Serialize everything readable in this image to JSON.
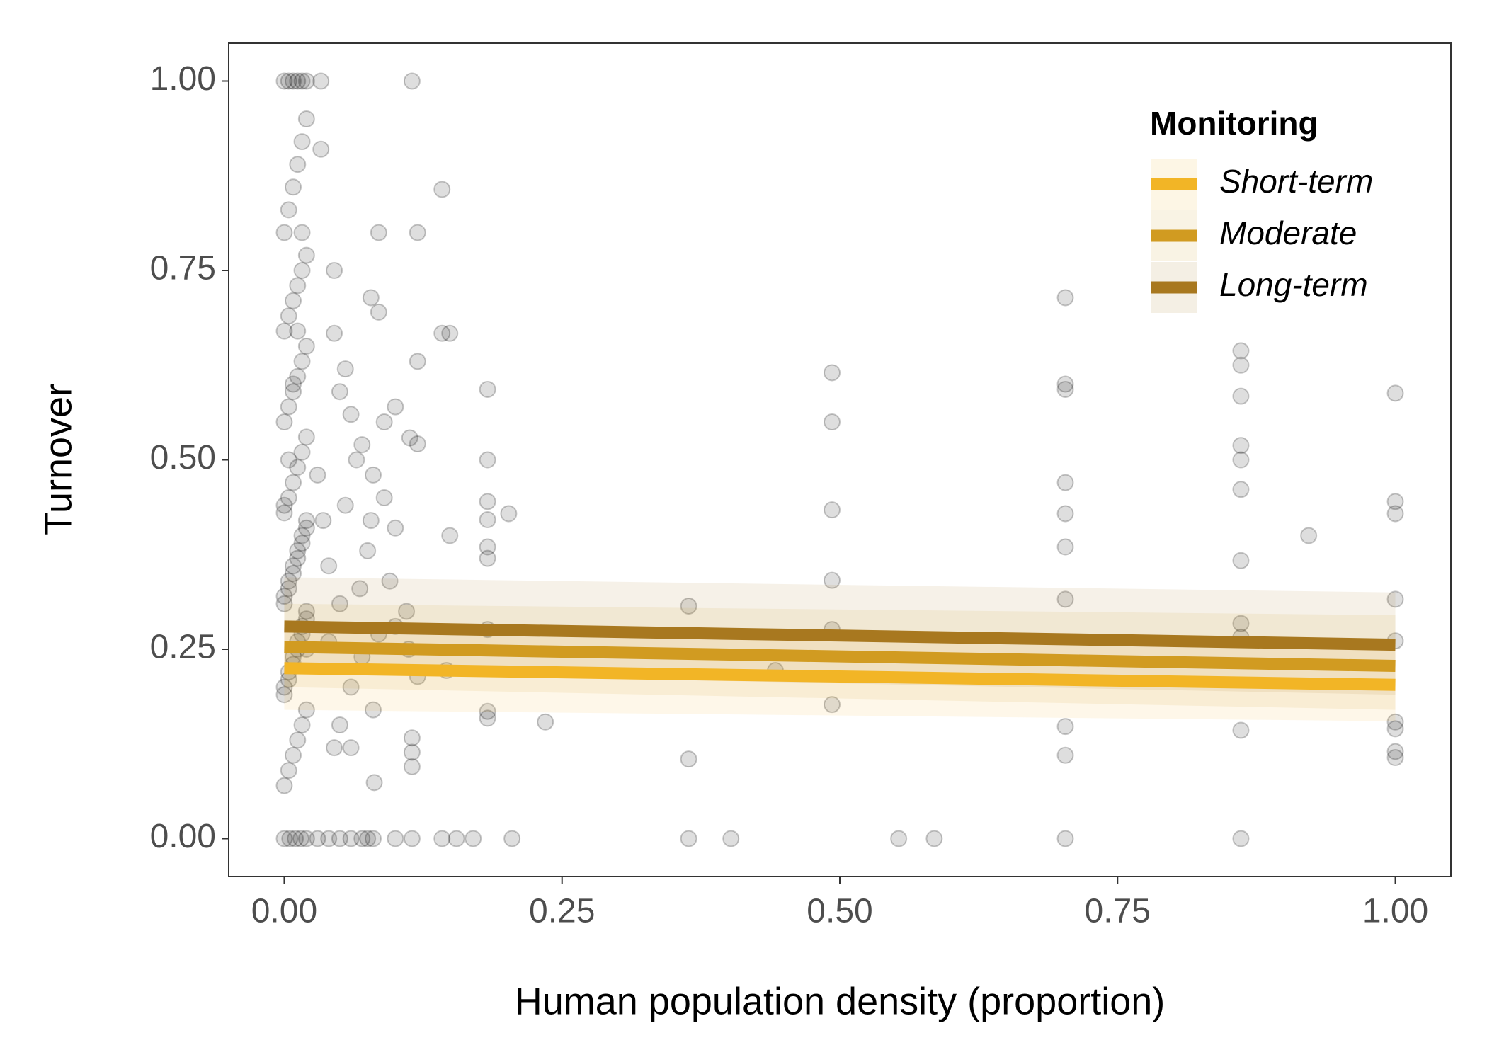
{
  "chart_data": {
    "type": "scatter",
    "x_label": "Human population density (proportion)",
    "y_label": "Turnover",
    "xlim": [
      -0.05,
      1.05
    ],
    "ylim": [
      -0.05,
      1.05
    ],
    "xticks": [
      {
        "value": 0,
        "label": "0.00"
      },
      {
        "value": 0.25,
        "label": "0.25"
      },
      {
        "value": 0.5,
        "label": "0.50"
      },
      {
        "value": 0.75,
        "label": "0.75"
      },
      {
        "value": 1,
        "label": "1.00"
      }
    ],
    "yticks": [
      {
        "value": 0,
        "label": "0.00"
      },
      {
        "value": 0.25,
        "label": "0.25"
      },
      {
        "value": 0.5,
        "label": "0.50"
      },
      {
        "value": 0.75,
        "label": "0.75"
      },
      {
        "value": 1,
        "label": "1.00"
      }
    ],
    "grid": false,
    "legend_title": "Monitoring",
    "legend_position": "top-right",
    "point_color": "#000000",
    "points": {
      "x": [
        0,
        0.005,
        0.01,
        0.015,
        0.02,
        0.03,
        0.04,
        0.05,
        0.06,
        0.07,
        0.075,
        0.08,
        0.1,
        0.115,
        0.142,
        0.155,
        0.17,
        0.205,
        0.364,
        0.402,
        0.553,
        0.585,
        0.703,
        0.861,
        0,
        0.004,
        0.008,
        0.012,
        0.016,
        0.02,
        0.033,
        0.115,
        0.033,
        0.142,
        0.085,
        0.12,
        0.703,
        0.078,
        0.085,
        0.045,
        0.142,
        0.149,
        0.045,
        0.12,
        0.861,
        0.861,
        0.493,
        1,
        0.703,
        0.703,
        0.183,
        0.861,
        0.493,
        0.113,
        0.12,
        0.861,
        0.183,
        0.861,
        0.703,
        0.861,
        1,
        0.183,
        0.493,
        0.202,
        0.703,
        1,
        0.183,
        0.922,
        0.149,
        0.703,
        0.183,
        0.183,
        0.861,
        0.493,
        0.703,
        1,
        0.364,
        0.861,
        0.493,
        0.183,
        0.861,
        1,
        0.442,
        0.146,
        0.12,
        0.493,
        0.183,
        0.183,
        0.235,
        1,
        1,
        0.703,
        0.861,
        0.115,
        0.115,
        1,
        1,
        0.703,
        0.364,
        0.115,
        0.081,
        0.05,
        0.06,
        0.07,
        0.08,
        0.09,
        0.1,
        0.065,
        0.055,
        0.04,
        0.075,
        0.095,
        0.11,
        0.05,
        0.035,
        0.085,
        0.07,
        0.06,
        0.05,
        0.045,
        0.08,
        0.1,
        0.09,
        0.03,
        0.04,
        0.055,
        0.068,
        0.112,
        0.1,
        0.078,
        0.06,
        0,
        0.004,
        0.008,
        0.012,
        0.016,
        0.02,
        0,
        0.004,
        0.008,
        0.012,
        0.016,
        0.02,
        0,
        0.004,
        0.008,
        0.012,
        0.016,
        0.02,
        0,
        0.004,
        0.008,
        0.012,
        0.016,
        0.02,
        0,
        0.004,
        0.008,
        0.012,
        0.016,
        0.02,
        0,
        0.004,
        0.008,
        0.012,
        0.016,
        0.02,
        0,
        0.004,
        0.008,
        0.012,
        0.016,
        0.02,
        0,
        0.004,
        0.008,
        0.012,
        0.016,
        0.02,
        0,
        0.004,
        0.008,
        0.012,
        0.016,
        0.02,
        0,
        0.004,
        0.008,
        0.012,
        0.016,
        0.02
      ],
      "y": [
        0,
        0,
        0,
        0,
        0,
        0,
        0,
        0,
        0,
        0,
        0,
        0,
        0,
        0,
        0,
        0,
        0,
        0,
        0,
        0,
        0,
        0,
        0,
        0,
        1,
        1,
        1,
        1,
        1,
        1,
        1,
        1,
        0.91,
        0.857,
        0.8,
        0.8,
        0.714,
        0.714,
        0.695,
        0.75,
        0.667,
        0.667,
        0.667,
        0.63,
        0.644,
        0.625,
        0.615,
        0.588,
        0.6,
        0.593,
        0.593,
        0.584,
        0.55,
        0.529,
        0.521,
        0.519,
        0.5,
        0.5,
        0.47,
        0.461,
        0.445,
        0.445,
        0.434,
        0.429,
        0.429,
        0.429,
        0.421,
        0.4,
        0.4,
        0.385,
        0.385,
        0.37,
        0.367,
        0.341,
        0.316,
        0.316,
        0.307,
        0.284,
        0.276,
        0.276,
        0.266,
        0.261,
        0.222,
        0.222,
        0.214,
        0.177,
        0.168,
        0.159,
        0.154,
        0.154,
        0.145,
        0.148,
        0.143,
        0.133,
        0.114,
        0.115,
        0.107,
        0.11,
        0.105,
        0.095,
        0.074,
        0.59,
        0.56,
        0.52,
        0.48,
        0.45,
        0.41,
        0.5,
        0.44,
        0.36,
        0.38,
        0.34,
        0.3,
        0.31,
        0.42,
        0.27,
        0.24,
        0.2,
        0.15,
        0.12,
        0.17,
        0.28,
        0.55,
        0.48,
        0.26,
        0.62,
        0.33,
        0.25,
        0.57,
        0.42,
        0.12,
        0.07,
        0.09,
        0.11,
        0.13,
        0.15,
        0.17,
        0.19,
        0.21,
        0.23,
        0.25,
        0.27,
        0.29,
        0.31,
        0.33,
        0.35,
        0.37,
        0.39,
        0.41,
        0.43,
        0.45,
        0.47,
        0.49,
        0.51,
        0.53,
        0.55,
        0.57,
        0.59,
        0.61,
        0.63,
        0.65,
        0.67,
        0.69,
        0.71,
        0.73,
        0.75,
        0.77,
        0.8,
        0.83,
        0.86,
        0.89,
        0.92,
        0.95,
        0.2,
        0.22,
        0.24,
        0.26,
        0.28,
        0.3,
        0.32,
        0.34,
        0.36,
        0.38,
        0.4,
        0.42,
        0.44,
        0.5,
        0.6,
        0.67,
        0.8,
        0.25
      ]
    },
    "series": [
      {
        "name": "Short-term",
        "color": "#f2b526",
        "x": [
          0,
          1
        ],
        "values": [
          0.225,
          0.203
        ],
        "lower": [
          0.17,
          0.155
        ],
        "upper": [
          0.28,
          0.25
        ]
      },
      {
        "name": "Moderate",
        "color": "#d19b21",
        "x": [
          0,
          1
        ],
        "values": [
          0.253,
          0.228
        ],
        "lower": [
          0.2,
          0.17
        ],
        "upper": [
          0.31,
          0.295
        ]
      },
      {
        "name": "Long-term",
        "color": "#a8781f",
        "x": [
          0,
          1
        ],
        "values": [
          0.28,
          0.256
        ],
        "lower": [
          0.22,
          0.19
        ],
        "upper": [
          0.345,
          0.325
        ]
      }
    ]
  }
}
